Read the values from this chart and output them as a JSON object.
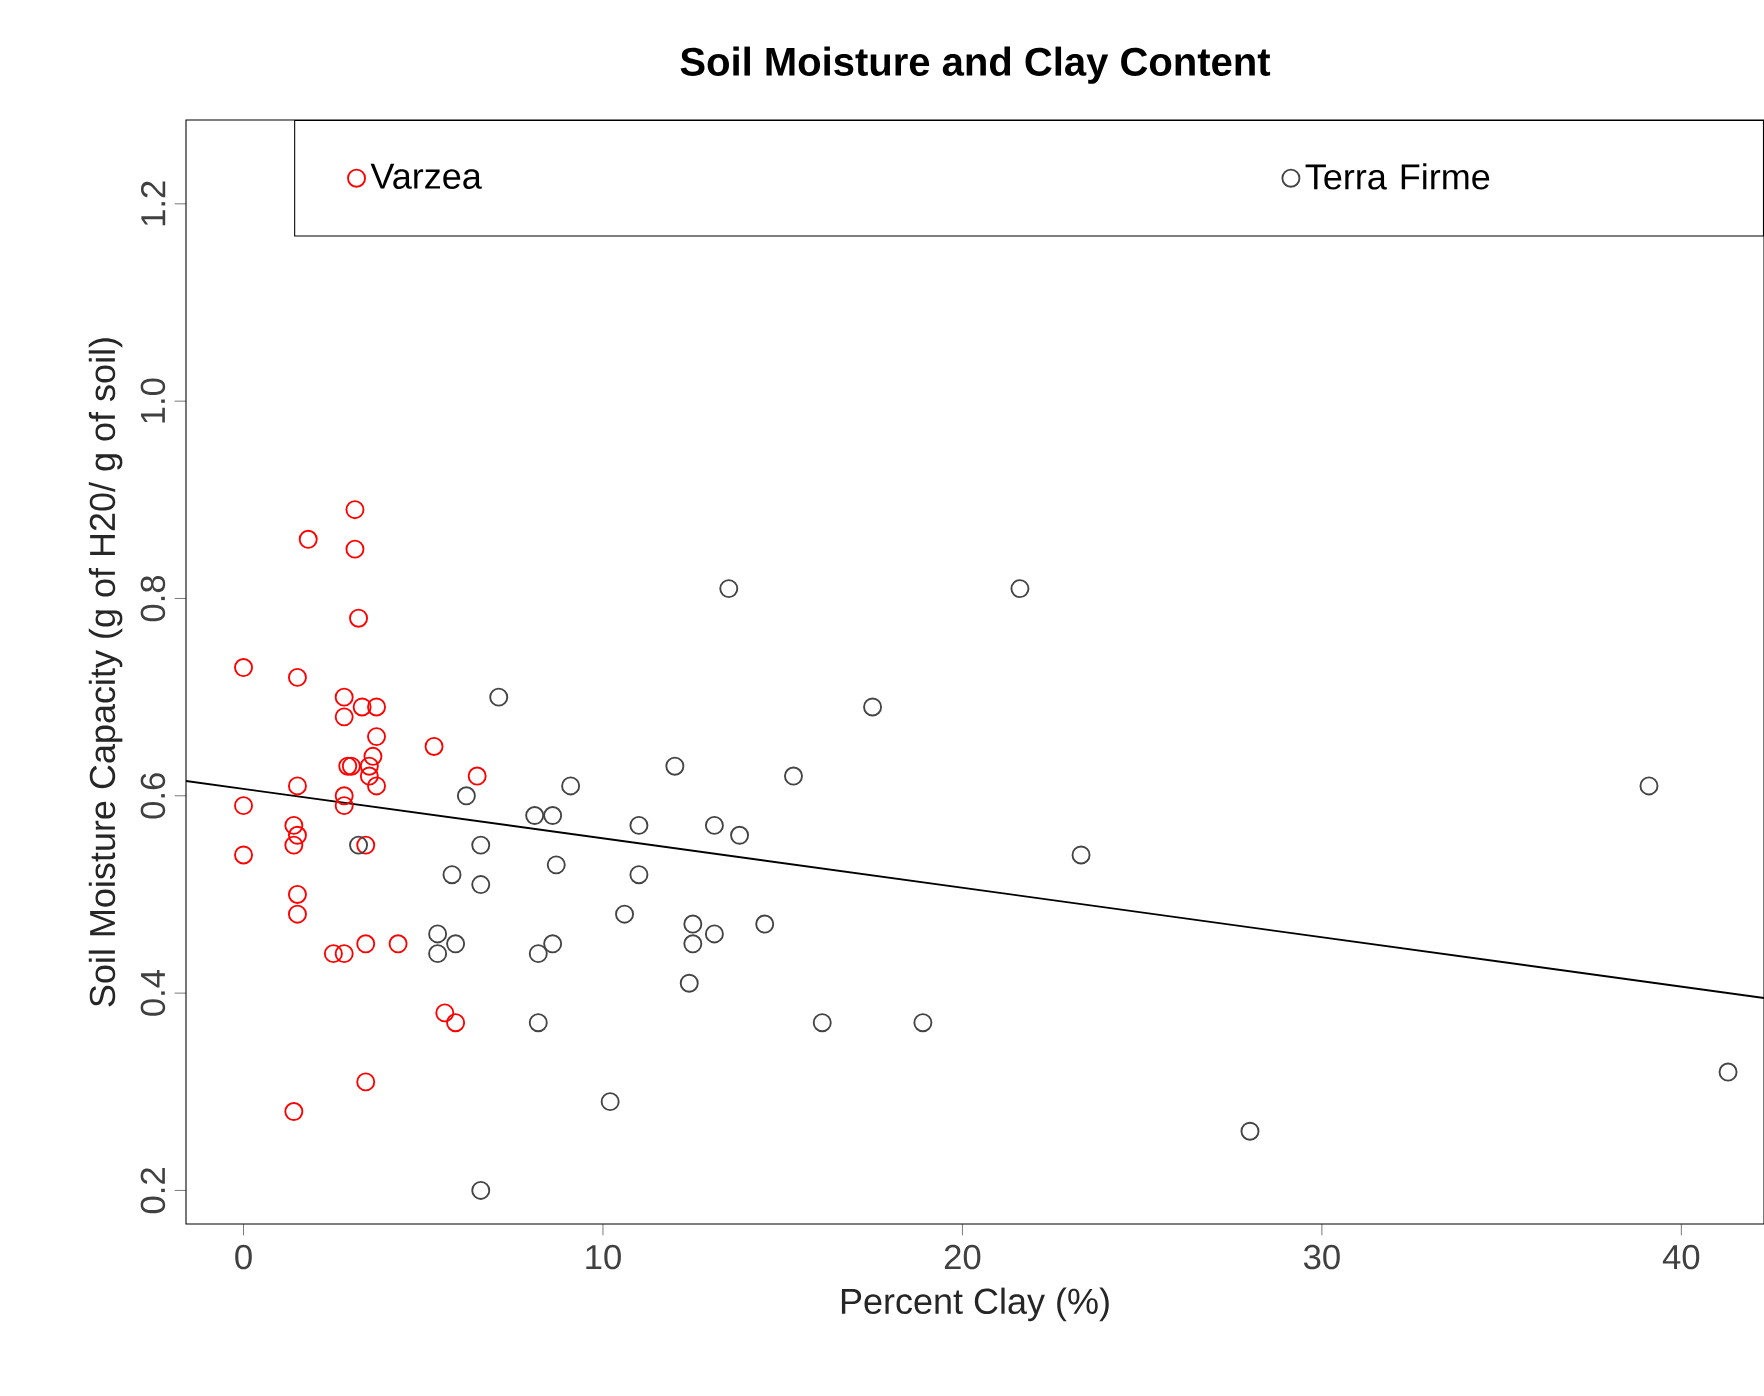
{
  "chart_data": {
    "type": "scatter",
    "title": "Soil Moisture and Clay Content",
    "xlabel": "Percent Clay (%)",
    "ylabel": "Soil Moisture Capacity (g of H20/ g of soil)",
    "xlim": [
      -1.6,
      42.3
    ],
    "ylim": [
      0.166,
      1.285
    ],
    "xticks": [
      0,
      10,
      20,
      30,
      40
    ],
    "yticks": [
      0.2,
      0.4,
      0.6,
      0.8,
      {
        "value": 1.0,
        "label": "1.0"
      },
      1.2
    ],
    "legend": "top right",
    "grid": false,
    "series": [
      {
        "name": "Varzea",
        "color": "#ff0000",
        "marker": "circle",
        "x": [
          3.1,
          3.1,
          3.2,
          1.8,
          0,
          1.5,
          2.8,
          2.8,
          3.3,
          3.7,
          3.7,
          3.6,
          3.5,
          2.9,
          3.0,
          3.5,
          3.7,
          5.3,
          6.5,
          1.5,
          2.8,
          2.8,
          0,
          1.4,
          1.5,
          1.4,
          3.4,
          1.5,
          1.5,
          2.5,
          2.8,
          3.4,
          4.3,
          5.6,
          5.9,
          3.4,
          1.4,
          0
        ],
        "values": [
          0.89,
          0.85,
          0.78,
          0.86,
          0.73,
          0.72,
          0.7,
          0.68,
          0.69,
          0.69,
          0.66,
          0.64,
          0.63,
          0.63,
          0.63,
          0.62,
          0.61,
          0.65,
          0.62,
          0.61,
          0.6,
          0.59,
          0.59,
          0.57,
          0.56,
          0.55,
          0.55,
          0.5,
          0.48,
          0.44,
          0.44,
          0.45,
          0.45,
          0.38,
          0.37,
          0.31,
          0.28,
          0.54
        ]
      },
      {
        "name": "Terra Firme",
        "color": "#444444",
        "marker": "circle",
        "x": [
          7.1,
          13.5,
          21.6,
          17.5,
          12.0,
          15.3,
          6.2,
          9.1,
          8.1,
          8.6,
          11.0,
          13.1,
          13.8,
          23.3,
          6.6,
          3.2,
          5.8,
          8.7,
          11.0,
          6.6,
          10.6,
          12.5,
          12.5,
          13.1,
          14.5,
          5.4,
          5.4,
          5.9,
          8.6,
          8.2,
          12.4,
          8.2,
          16.1,
          18.9,
          10.2,
          28.0,
          6.6,
          39.1,
          41.3
        ],
        "values": [
          0.7,
          0.81,
          0.81,
          0.69,
          0.63,
          0.62,
          0.6,
          0.61,
          0.58,
          0.58,
          0.57,
          0.57,
          0.56,
          0.54,
          0.55,
          0.55,
          0.52,
          0.53,
          0.52,
          0.51,
          0.48,
          0.47,
          0.45,
          0.46,
          0.47,
          0.46,
          0.44,
          0.45,
          0.45,
          0.44,
          0.41,
          0.37,
          0.37,
          0.37,
          0.29,
          0.26,
          0.2,
          0.61,
          0.32
        ]
      },
      {
        "type": "line",
        "color": "#000000",
        "marker": "none",
        "x": [
          -1.6,
          42.3
        ],
        "values": [
          0.615,
          0.395
        ]
      }
    ]
  }
}
